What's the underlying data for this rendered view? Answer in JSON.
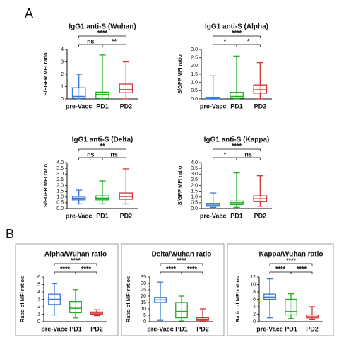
{
  "panel_labels": [
    "A",
    "B"
  ],
  "chart_data": [
    {
      "type": "box",
      "title": "IgG1 anti-S (Wuhan)",
      "ylabel": "S/EGFR MFI ratio",
      "categories": [
        "pre-Vacc",
        "PD1",
        "PD2"
      ],
      "colors": [
        "#3a78d8",
        "#1fae1f",
        "#d03535"
      ],
      "boxes": [
        {
          "min": 0,
          "q1": 0.05,
          "median": 0.2,
          "q3": 0.9,
          "max": 2.0
        },
        {
          "min": 0,
          "q1": 0.05,
          "median": 0.35,
          "q3": 0.55,
          "max": 3.55
        },
        {
          "min": 0,
          "q1": 0.5,
          "median": 0.75,
          "q3": 1.2,
          "max": 3.0
        }
      ],
      "ylim": [
        0,
        4
      ],
      "yticks": [
        0,
        1,
        2,
        3,
        4
      ],
      "brackets": [
        {
          "pair": [
            "pre-Vacc",
            "PD2"
          ],
          "label": "****"
        },
        {
          "pair": [
            "pre-Vacc",
            "PD1"
          ],
          "label": "ns"
        },
        {
          "pair": [
            "PD1",
            "PD2"
          ],
          "label": "**"
        }
      ]
    },
    {
      "type": "box",
      "title": "IgG1 anti-S (Alpha)",
      "ylabel": "S/GFP MFI ratio",
      "categories": [
        "pre-Vacc",
        "PD1",
        "PD2"
      ],
      "colors": [
        "#3a78d8",
        "#1fae1f",
        "#d03535"
      ],
      "boxes": [
        {
          "min": 0,
          "q1": 0,
          "median": 0.02,
          "q3": 0.1,
          "max": 1.4
        },
        {
          "min": 0,
          "q1": 0.05,
          "median": 0.15,
          "q3": 0.4,
          "max": 2.6
        },
        {
          "min": 0,
          "q1": 0.35,
          "median": 0.55,
          "q3": 0.85,
          "max": 2.2
        }
      ],
      "ylim": [
        0,
        3
      ],
      "yticks": [
        {
          "value": 0,
          "label": "0.0"
        },
        0.5,
        {
          "value": 1,
          "label": "1.0"
        },
        1.5,
        {
          "value": 2,
          "label": "2.0"
        },
        2.5,
        {
          "value": 3,
          "label": "3.0"
        }
      ],
      "brackets": [
        {
          "pair": [
            "pre-Vacc",
            "PD2"
          ],
          "label": "****"
        },
        {
          "pair": [
            "pre-Vacc",
            "PD1"
          ],
          "label": "*"
        },
        {
          "pair": [
            "PD1",
            "PD2"
          ],
          "label": "*"
        }
      ]
    },
    {
      "type": "box",
      "title": "IgG1 anti-S (Delta)",
      "ylabel": "S/EGFR MFI ratio",
      "categories": [
        "pre-Vacc",
        "PD1",
        "PD2"
      ],
      "colors": [
        "#3a78d8",
        "#1fae1f",
        "#d03535"
      ],
      "boxes": [
        {
          "min": 0.4,
          "q1": 0.75,
          "median": 0.9,
          "q3": 1.05,
          "max": 1.6
        },
        {
          "min": 0.4,
          "q1": 0.75,
          "median": 0.9,
          "q3": 1.1,
          "max": 2.4
        },
        {
          "min": 0.4,
          "q1": 0.8,
          "median": 1.05,
          "q3": 1.35,
          "max": 3.45
        }
      ],
      "ylim": [
        0,
        4
      ],
      "yticks": [
        {
          "value": 0,
          "label": "0.0"
        },
        0.5,
        {
          "value": 1,
          "label": "1.0"
        },
        1.5,
        {
          "value": 2,
          "label": "2.0"
        },
        2.5,
        {
          "value": 3,
          "label": "3.0"
        },
        3.5,
        {
          "value": 4,
          "label": "4.0"
        }
      ],
      "brackets": [
        {
          "pair": [
            "pre-Vacc",
            "PD2"
          ],
          "label": "**"
        },
        {
          "pair": [
            "pre-Vacc",
            "PD1"
          ],
          "label": "ns"
        },
        {
          "pair": [
            "PD1",
            "PD2"
          ],
          "label": "ns"
        }
      ]
    },
    {
      "type": "box",
      "title": "IgG1 anti-S (Kappa)",
      "ylabel": "S/GFP MFI ratio",
      "categories": [
        "pre-Vacc",
        "PD1",
        "PD2"
      ],
      "colors": [
        "#3a78d8",
        "#1fae1f",
        "#d03535"
      ],
      "boxes": [
        {
          "min": 0.1,
          "q1": 0.2,
          "median": 0.3,
          "q3": 0.45,
          "max": 1.35
        },
        {
          "min": 0.1,
          "q1": 0.35,
          "median": 0.5,
          "q3": 0.65,
          "max": 3.1
        },
        {
          "min": 0.2,
          "q1": 0.6,
          "median": 0.85,
          "q3": 1.1,
          "max": 2.85
        }
      ],
      "ylim": [
        0,
        4
      ],
      "yticks": [
        {
          "value": 0,
          "label": "0.0"
        },
        0.5,
        {
          "value": 1,
          "label": "1.0"
        },
        1.5,
        {
          "value": 2,
          "label": "2.0"
        },
        2.5,
        {
          "value": 3,
          "label": "3.0"
        },
        3.5,
        {
          "value": 4,
          "label": "4.0"
        }
      ],
      "brackets": [
        {
          "pair": [
            "pre-Vacc",
            "PD2"
          ],
          "label": "****"
        },
        {
          "pair": [
            "pre-Vacc",
            "PD1"
          ],
          "label": "*"
        },
        {
          "pair": [
            "PD1",
            "PD2"
          ],
          "label": "ns"
        }
      ]
    },
    {
      "type": "box",
      "title": "Alpha/Wuhan ratio",
      "ylabel": "Ratio of MFI ratios",
      "categories": [
        "pre-Vacc",
        "PD1",
        "PD2"
      ],
      "colors": [
        "#3a78d8",
        "#1fae1f",
        "#d03535"
      ],
      "boxes": [
        {
          "min": 0.9,
          "q1": 2.3,
          "median": 3.0,
          "q3": 3.7,
          "max": 5.1
        },
        {
          "min": 0.5,
          "q1": 1.2,
          "median": 1.8,
          "q3": 2.7,
          "max": 4.3
        },
        {
          "min": 0.8,
          "q1": 1.0,
          "median": 1.15,
          "q3": 1.3,
          "max": 1.6
        }
      ],
      "ylim": [
        0,
        6
      ],
      "yticks": [
        0,
        1,
        2,
        3,
        4,
        5,
        6
      ],
      "brackets": [
        {
          "pair": [
            "pre-Vacc",
            "PD2"
          ],
          "label": "****"
        },
        {
          "pair": [
            "pre-Vacc",
            "PD1"
          ],
          "label": "****"
        },
        {
          "pair": [
            "PD1",
            "PD2"
          ],
          "label": "****"
        }
      ]
    },
    {
      "type": "box",
      "title": "Delta/Wuhan ratio",
      "ylabel": "Ratio of MFI ratios",
      "categories": [
        "pre-Vacc",
        "PD1",
        "PD2"
      ],
      "colors": [
        "#3a78d8",
        "#1fae1f",
        "#d03535"
      ],
      "boxes": [
        {
          "min": 1,
          "q1": 15,
          "median": 17,
          "q3": 19,
          "max": 31
        },
        {
          "min": 0.5,
          "q1": 3,
          "median": 8,
          "q3": 15,
          "max": 20
        },
        {
          "min": 0.3,
          "q1": 1,
          "median": 1.5,
          "q3": 3,
          "max": 10
        }
      ],
      "ylim": [
        0,
        35
      ],
      "yticks": [
        0,
        5,
        10,
        15,
        20,
        25,
        30,
        35
      ],
      "brackets": [
        {
          "pair": [
            "pre-Vacc",
            "PD2"
          ],
          "label": "****"
        },
        {
          "pair": [
            "pre-Vacc",
            "PD1"
          ],
          "label": "****"
        },
        {
          "pair": [
            "PD1",
            "PD2"
          ],
          "label": "****"
        }
      ]
    },
    {
      "type": "box",
      "title": "Kappa/Wuhan ratio",
      "ylabel": "Ratio of MFI ratios",
      "categories": [
        "pre-Vacc",
        "PD1",
        "PD2"
      ],
      "colors": [
        "#3a78d8",
        "#1fae1f",
        "#d03535"
      ],
      "boxes": [
        {
          "min": 1,
          "q1": 6,
          "median": 6.6,
          "q3": 7.4,
          "max": 11.5
        },
        {
          "min": 0.8,
          "q1": 1.8,
          "median": 2.7,
          "q3": 6,
          "max": 7.5
        },
        {
          "min": 0.5,
          "q1": 1,
          "median": 1.3,
          "q3": 1.8,
          "max": 4
        }
      ],
      "ylim": [
        0,
        12
      ],
      "yticks": [
        0,
        2,
        4,
        6,
        8,
        10,
        12
      ],
      "brackets": [
        {
          "pair": [
            "pre-Vacc",
            "PD2"
          ],
          "label": "****"
        },
        {
          "pair": [
            "pre-Vacc",
            "PD1"
          ],
          "label": "****"
        },
        {
          "pair": [
            "PD1",
            "PD2"
          ],
          "label": "****"
        }
      ]
    }
  ]
}
